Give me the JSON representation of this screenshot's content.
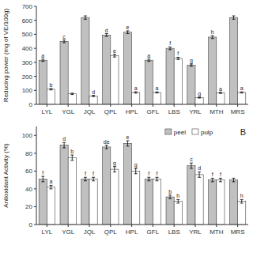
{
  "chart_data": [
    {
      "type": "bar",
      "ylabel": "Reducing power (mg of VE/100g)",
      "categories": [
        "LYL",
        "YGL",
        "JQL",
        "QPL",
        "HPL",
        "GFL",
        "LBS",
        "YRL",
        "MTH",
        "MRS"
      ],
      "series": [
        {
          "color": "#c0c0c0",
          "values": [
            315,
            450,
            620,
            495,
            515,
            315,
            400,
            280,
            480,
            620
          ],
          "errors": [
            8,
            10,
            12,
            10,
            10,
            8,
            10,
            8,
            10,
            12
          ],
          "letters": [
            "a",
            "c",
            null,
            "d",
            "e",
            "a",
            "f",
            "g",
            "h",
            null
          ]
        },
        {
          "color": "#ffffff",
          "values": [
            108,
            75,
            60,
            348,
            85,
            85,
            328,
            48,
            82,
            85
          ],
          "errors": [
            5,
            5,
            4,
            10,
            5,
            4,
            8,
            3,
            4,
            4
          ],
          "letters": [
            "b",
            null,
            "d",
            "e",
            "a",
            "a",
            "f",
            "g",
            "a",
            "a"
          ]
        }
      ],
      "ylim": [
        0,
        700
      ],
      "yticks": [
        0,
        100,
        200,
        300,
        400,
        500,
        600,
        700
      ],
      "grid": false
    },
    {
      "type": "bar",
      "ylabel": "Antioxidant Activity (%)",
      "categories": [
        "LYL",
        "YGL",
        "JQL",
        "QPL",
        "HPL",
        "GFL",
        "LBS",
        "YRL",
        "MTH",
        "MRS"
      ],
      "series": [
        {
          "name": "peel",
          "color": "#c0c0c0",
          "values": [
            51,
            89,
            51,
            87,
            91,
            51,
            31,
            66,
            50,
            50
          ],
          "errors": [
            3,
            3,
            2,
            2,
            3,
            2,
            2,
            3,
            2,
            2
          ],
          "letters": [
            "f",
            "d",
            "f",
            "de",
            "e",
            "f",
            "b",
            "c",
            "f",
            null
          ]
        },
        {
          "name": "pulp",
          "color": "#ffffff",
          "values": [
            42,
            75,
            51,
            62,
            60,
            51,
            26,
            56,
            50,
            26
          ],
          "errors": [
            2,
            3,
            2,
            3,
            3,
            2,
            2,
            3,
            2,
            2
          ],
          "letters": [
            "a",
            "b",
            "f",
            "g",
            "g",
            "f",
            "h",
            "d",
            "f",
            "h"
          ]
        }
      ],
      "ylim": [
        0,
        110
      ],
      "yticks": [
        0,
        20,
        40,
        60,
        80,
        100
      ],
      "grid": false,
      "legend": "top",
      "annotations": [
        "B"
      ]
    }
  ]
}
